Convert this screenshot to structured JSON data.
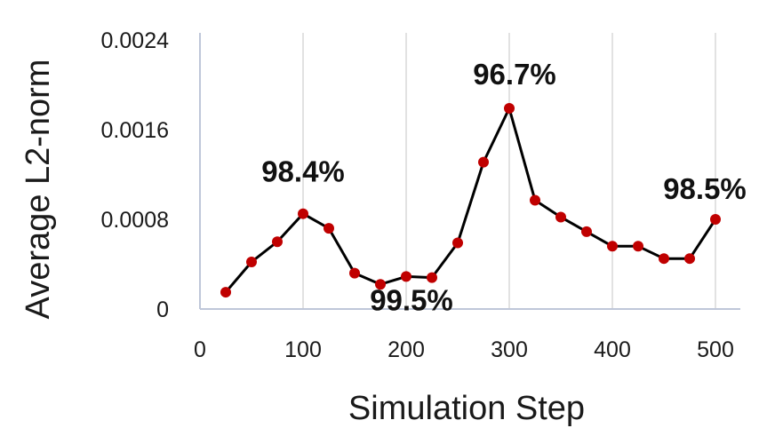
{
  "chart_data": {
    "type": "line",
    "title": "",
    "xlabel": "Simulation Step",
    "ylabel": "Average L2-norm",
    "x_ticks": [
      "0",
      "100",
      "200",
      "300",
      "400",
      "500"
    ],
    "y_ticks": [
      "0",
      "0.0008",
      "0.0016",
      "0.0024"
    ],
    "xlim": [
      0,
      500
    ],
    "ylim": [
      0,
      0.0024
    ],
    "grid": "vertical",
    "legend": "none",
    "colors": {
      "line": "#000000",
      "marker": "#c00000"
    },
    "series": [
      {
        "x": [
          25,
          50,
          75,
          100,
          125,
          150,
          175,
          200,
          225,
          250,
          275,
          300,
          325,
          350,
          375,
          400,
          425,
          450,
          475,
          500
        ],
        "y": [
          0.00015,
          0.00042,
          0.0006,
          0.00085,
          0.00072,
          0.00032,
          0.00022,
          0.00029,
          0.00028,
          0.00059,
          0.00131,
          0.00179,
          0.00097,
          0.00082,
          0.00069,
          0.00056,
          0.00056,
          0.00045,
          0.00045,
          0.0008
        ]
      }
    ],
    "annotations": [
      {
        "text": "98.4%",
        "x": 100,
        "y": 0.00085
      },
      {
        "text": "99.5%",
        "x": 200,
        "y": 0.00029
      },
      {
        "text": "96.7%",
        "x": 300,
        "y": 0.00179
      },
      {
        "text": "98.5%",
        "x": 500,
        "y": 0.0008
      }
    ]
  }
}
